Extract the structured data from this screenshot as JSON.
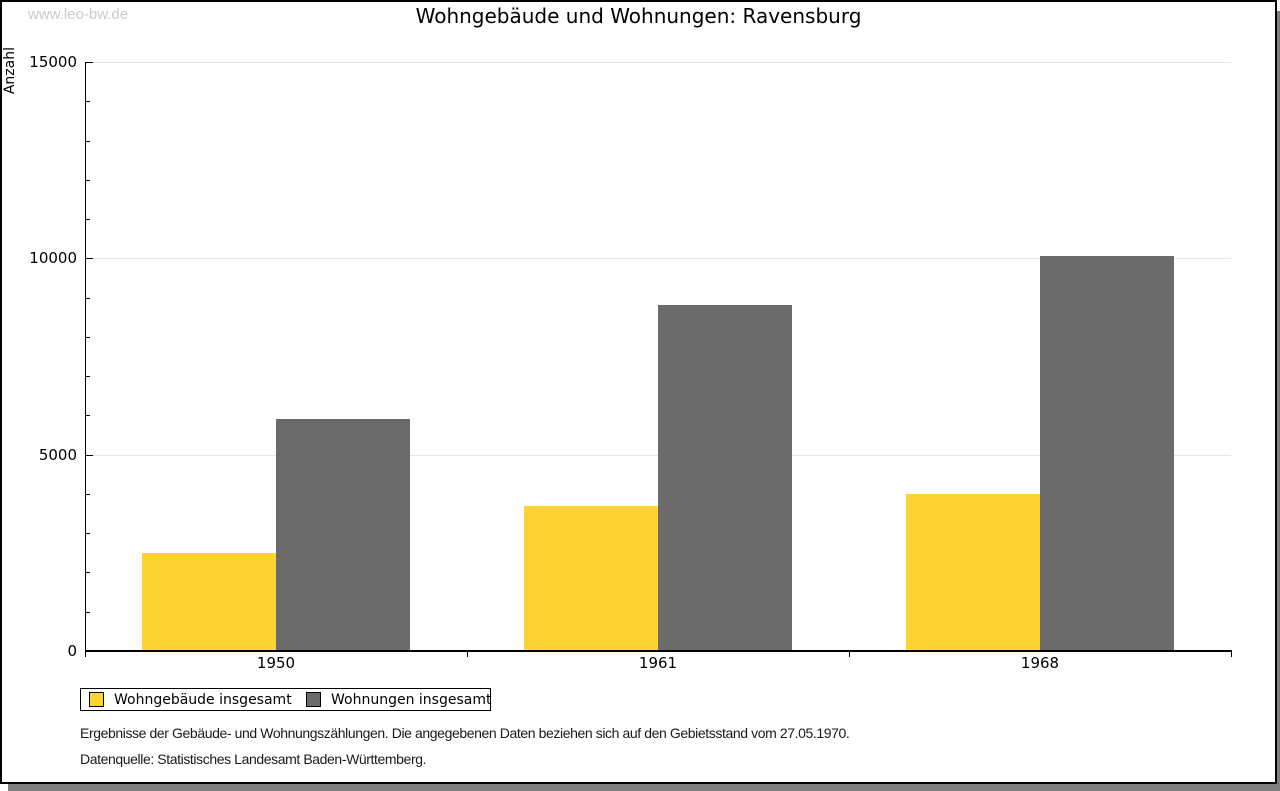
{
  "watermark": "www.leo-bw.de",
  "chart_data": {
    "type": "bar",
    "title": "Wohngebäude und Wohnungen: Ravensburg",
    "ylabel": "Anzahl",
    "xlabel": "",
    "ylim": [
      0,
      15000
    ],
    "yticks_major": [
      0,
      5000,
      10000,
      15000
    ],
    "ytick_minor_step": 1000,
    "grid": "horizontal-major",
    "legend_position": "bottom-left",
    "categories": [
      "1950",
      "1961",
      "1968"
    ],
    "series": [
      {
        "name": "Wohngebäude insgesamt",
        "color": "#fcd330",
        "values": [
          2500,
          3700,
          4000
        ]
      },
      {
        "name": "Wohnungen insgesamt",
        "color": "#6b6b6b",
        "values": [
          5900,
          8800,
          10050
        ]
      }
    ]
  },
  "footnotes": [
    "Ergebnisse der Gebäude- und Wohnungszählungen. Die angegebenen Daten beziehen sich auf den Gebietsstand vom 27.05.1970.",
    "Datenquelle: Statistisches Landesamt Baden-Württemberg."
  ],
  "colors": {
    "grid": "#e6e6e6",
    "axis": "#000000",
    "watermark": "#cbcbcb",
    "card_shadow": "#7e7e7e",
    "card_border": "#000000"
  }
}
